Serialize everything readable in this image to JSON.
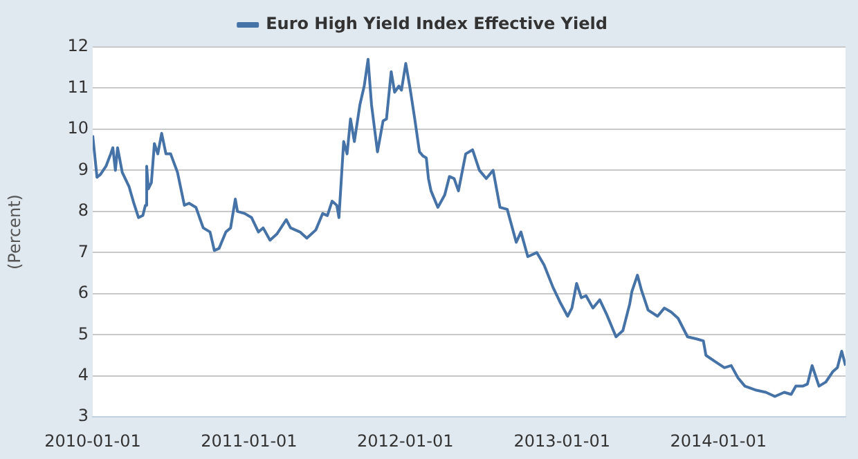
{
  "chart_data": {
    "type": "line",
    "ylabel": "(Percent)",
    "legend": "top",
    "grid": "y",
    "marker": "none",
    "line_style": "solid",
    "xlim": [
      "2010-01-01",
      "2014-10-25"
    ],
    "xticks": [
      "2010-01-01",
      "2011-01-01",
      "2012-01-01",
      "2013-01-01",
      "2014-01-01"
    ],
    "ylim": [
      3,
      12
    ],
    "yticks": [
      3,
      4,
      5,
      6,
      7,
      8,
      9,
      10,
      11,
      12
    ],
    "x": [
      "2010-01-01",
      "2010-01-11",
      "2010-01-19",
      "2010-02-01",
      "2010-02-12",
      "2010-02-17",
      "2010-02-23",
      "2010-02-28",
      "2010-03-11",
      "2010-03-27",
      "2010-04-07",
      "2010-04-18",
      "2010-04-28",
      "2010-05-04",
      "2010-05-07",
      "2010-05-11",
      "2010-05-18",
      "2010-05-25",
      "2010-06-02",
      "2010-06-11",
      "2010-06-21",
      "2010-07-02",
      "2010-07-18",
      "2010-08-03",
      "2010-08-14",
      "2010-08-30",
      "2010-09-16",
      "2010-10-02",
      "2010-10-12",
      "2010-10-23",
      "2010-11-08",
      "2010-11-19",
      "2010-11-30",
      "2010-12-05",
      "2010-12-22",
      "2011-01-07",
      "2011-01-23",
      "2011-02-03",
      "2011-02-19",
      "2011-03-07",
      "2011-03-29",
      "2011-04-08",
      "2011-04-30",
      "2011-05-16",
      "2011-06-06",
      "2011-06-22",
      "2011-07-03",
      "2011-07-14",
      "2011-07-25",
      "2011-07-30",
      "2011-08-10",
      "2011-08-18",
      "2011-08-26",
      "2011-09-04",
      "2011-09-17",
      "2011-09-27",
      "2011-10-06",
      "2011-10-14",
      "2011-10-28",
      "2011-11-10",
      "2011-11-18",
      "2011-11-29",
      "2011-12-07",
      "2011-12-17",
      "2011-12-23",
      "2012-01-02",
      "2012-01-12",
      "2012-01-23",
      "2012-02-03",
      "2012-02-11",
      "2012-02-19",
      "2012-02-24",
      "2012-03-01",
      "2012-03-17",
      "2012-04-02",
      "2012-04-13",
      "2012-04-24",
      "2012-05-04",
      "2012-05-21",
      "2012-06-06",
      "2012-06-22",
      "2012-07-08",
      "2012-07-24",
      "2012-08-09",
      "2012-08-26",
      "2012-09-16",
      "2012-09-27",
      "2012-10-13",
      "2012-11-03",
      "2012-11-20",
      "2012-12-11",
      "2012-12-27",
      "2013-01-14",
      "2013-01-24",
      "2013-02-04",
      "2013-02-15",
      "2013-02-26",
      "2013-03-14",
      "2013-03-30",
      "2013-04-15",
      "2013-05-07",
      "2013-05-23",
      "2013-06-08",
      "2013-06-13",
      "2013-06-26",
      "2013-07-05",
      "2013-07-21",
      "2013-08-12",
      "2013-08-28",
      "2013-09-13",
      "2013-09-29",
      "2013-10-21",
      "2013-11-11",
      "2013-11-27",
      "2013-12-03",
      "2013-12-24",
      "2014-01-15",
      "2014-01-31",
      "2014-02-16",
      "2014-03-04",
      "2014-03-31",
      "2014-04-22",
      "2014-05-13",
      "2014-06-04",
      "2014-06-20",
      "2014-07-01",
      "2014-07-17",
      "2014-07-28",
      "2014-08-08",
      "2014-08-24",
      "2014-09-09",
      "2014-09-25",
      "2014-10-06",
      "2014-10-16",
      "2014-10-25"
    ],
    "series": [
      {
        "name": "Euro High Yield Index Effective Yield",
        "color": "#4572a7",
        "values": [
          9.85,
          8.83,
          8.9,
          9.1,
          9.4,
          9.55,
          9.0,
          9.55,
          8.95,
          8.6,
          8.2,
          7.85,
          7.9,
          8.15,
          9.1,
          8.55,
          8.7,
          9.65,
          9.4,
          9.9,
          9.4,
          9.4,
          8.95,
          8.15,
          8.2,
          8.1,
          7.6,
          7.5,
          7.05,
          7.1,
          7.5,
          7.6,
          8.3,
          8.0,
          7.95,
          7.85,
          7.5,
          7.6,
          7.3,
          7.45,
          7.8,
          7.6,
          7.5,
          7.35,
          7.55,
          7.95,
          7.9,
          8.25,
          8.15,
          7.85,
          9.7,
          9.4,
          10.25,
          9.7,
          10.6,
          11.05,
          11.7,
          10.6,
          9.45,
          10.2,
          10.25,
          11.4,
          10.9,
          11.05,
          10.95,
          11.6,
          11.0,
          10.25,
          9.45,
          9.35,
          9.3,
          8.8,
          8.5,
          8.1,
          8.4,
          8.85,
          8.8,
          8.5,
          9.4,
          9.5,
          9.0,
          8.8,
          9.0,
          8.1,
          8.05,
          7.25,
          7.5,
          6.9,
          7.0,
          6.7,
          6.15,
          5.8,
          5.45,
          5.65,
          6.25,
          5.9,
          5.95,
          5.65,
          5.85,
          5.5,
          4.95,
          5.1,
          5.75,
          6.05,
          6.45,
          6.1,
          5.6,
          5.45,
          5.65,
          5.55,
          5.4,
          4.95,
          4.9,
          4.85,
          4.5,
          4.35,
          4.2,
          4.25,
          3.95,
          3.75,
          3.65,
          3.6,
          3.5,
          3.6,
          3.55,
          3.75,
          3.75,
          3.8,
          4.25,
          3.75,
          3.85,
          4.1,
          4.2,
          4.6,
          4.25
        ]
      }
    ]
  }
}
